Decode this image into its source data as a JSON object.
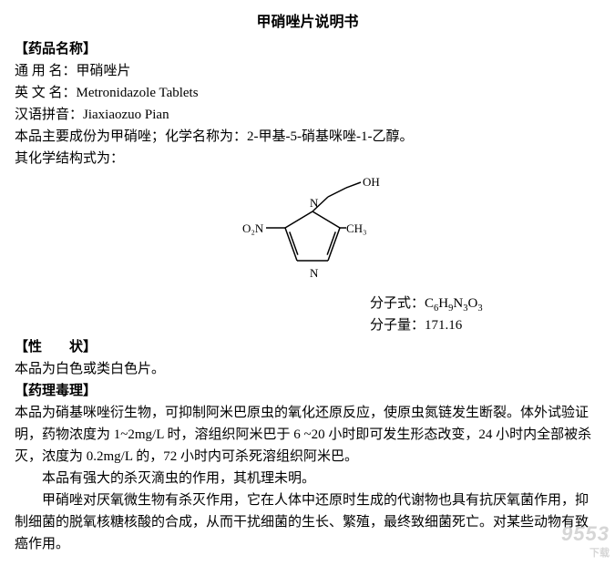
{
  "title": "甲硝唑片说明书",
  "name_section": {
    "header": "【药品名称】",
    "generic_label": "通 用 名：",
    "generic_value": "甲硝唑片",
    "english_label": "英 文 名：",
    "english_value": "Metronidazole Tablets",
    "pinyin_label": "汉语拼音：",
    "pinyin_value": "Jiaxiaozuo Pian",
    "ingredient_line": "本品主要成份为甲硝唑；化学名称为：2-甲基-5-硝基咪唑-1-乙醇。",
    "structure_intro": "其化学结构式为："
  },
  "structure": {
    "width": 180,
    "height": 120,
    "stroke": "#000000",
    "labels": {
      "O2N": "O₂N",
      "CH3": "CH₃",
      "N_top": "N",
      "N_bottom": "N",
      "OH": "OH"
    }
  },
  "formula": {
    "label": "分子式：",
    "value_html": "C<sub>6</sub>H<sub>9</sub>N<sub>3</sub>O<sub>3</sub>",
    "weight_label": "分子量：",
    "weight_value": "171.16"
  },
  "appearance": {
    "header": "【性　　状】",
    "text": "本品为白色或类白色片。"
  },
  "pharmacology": {
    "header": "【药理毒理】",
    "para1": "本品为硝基咪唑衍生物，可抑制阿米巴原虫的氧化还原反应，使原虫氮链发生断裂。体外试验证明，药物浓度为 1~2mg/L 时，溶组织阿米巴于 6 ~20 小时即可发生形态改变，24 小时内全部被杀灭，浓度为 0.2mg/L 的，72 小时内可杀死溶组织阿米巴。",
    "para2": "本品有强大的杀灭滴虫的作用，其机理未明。",
    "para3": "甲硝唑对厌氧微生物有杀灭作用，它在人体中还原时生成的代谢物也具有抗厌氧菌作用，抑制细菌的脱氧核糖核酸的合成，从而干扰细菌的生长、繁殖，最终致细菌死亡。对某些动物有致癌作用。"
  },
  "watermark": {
    "main": "9553",
    "sub": "下载"
  }
}
